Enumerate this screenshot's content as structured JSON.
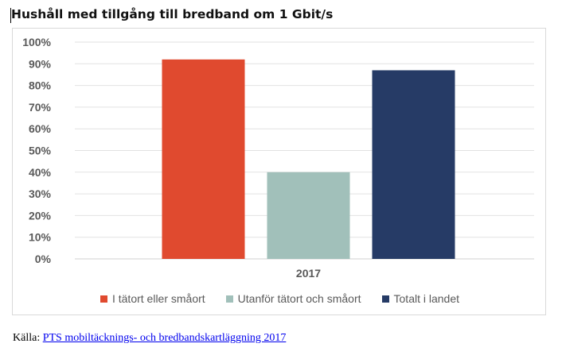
{
  "title": "Hushåll med tillgång till bredband om 1 Gbit/s",
  "source": {
    "prefix": "Källa:",
    "link_text": "PTS mobiltäcknings- och bredbandskartläggning 2017"
  },
  "chart_data": {
    "type": "bar",
    "title": "Hushåll med tillgång till bredband om 1 Gbit/s",
    "categories": [
      "2017"
    ],
    "series": [
      {
        "name": "I tätort eller småort",
        "values": [
          92
        ],
        "color": "#e04a2f"
      },
      {
        "name": "Utanför tätort och småort",
        "values": [
          40
        ],
        "color": "#a1c0ba"
      },
      {
        "name": "Totalt i landet",
        "values": [
          87
        ],
        "color": "#263b66"
      }
    ],
    "y_ticks": [
      "0%",
      "10%",
      "20%",
      "30%",
      "40%",
      "50%",
      "60%",
      "70%",
      "80%",
      "90%",
      "100%"
    ],
    "ylim": [
      0,
      100
    ],
    "grid": true,
    "legend_position": "bottom"
  }
}
